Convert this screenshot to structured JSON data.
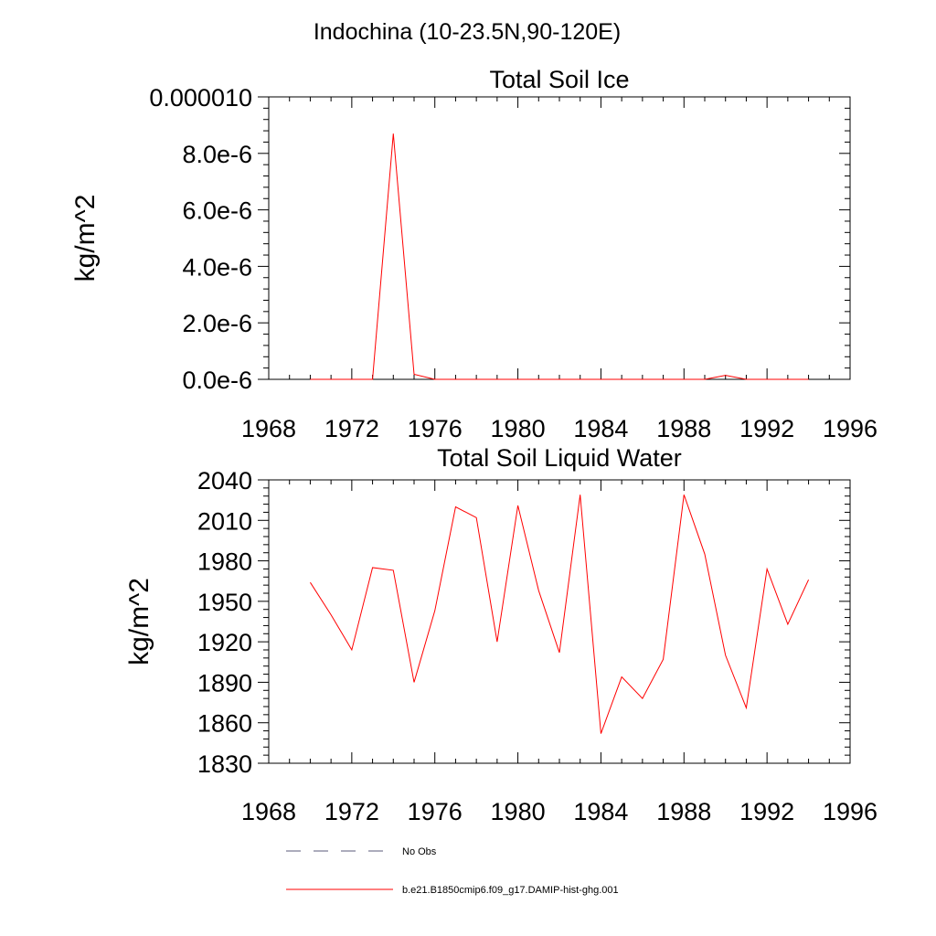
{
  "main_title": "Indochina (10-23.5N,90-120E)",
  "chart_data": [
    {
      "type": "line",
      "title": "Total Soil Ice",
      "xlabel": "",
      "ylabel": "kg/m^2",
      "xlim": [
        1968,
        1996
      ],
      "ylim": [
        0,
        1e-05
      ],
      "x_ticks": [
        1968,
        1972,
        1976,
        1980,
        1984,
        1988,
        1992,
        1996
      ],
      "x_tick_labels": [
        "1968",
        "1972",
        "1976",
        "1980",
        "1984",
        "1988",
        "1992",
        "1996"
      ],
      "y_ticks": [
        0,
        2e-06,
        4e-06,
        6e-06,
        8e-06,
        1e-05
      ],
      "y_tick_labels": [
        "0.0e-6",
        "2.0e-6",
        "4.0e-6",
        "6.0e-6",
        "8.0e-6",
        "0.000010"
      ],
      "series": [
        {
          "color": "#ff0000",
          "x": [
            1970,
            1971,
            1972,
            1973,
            1974,
            1975,
            1976,
            1977,
            1978,
            1979,
            1980,
            1981,
            1982,
            1983,
            1984,
            1985,
            1986,
            1987,
            1988,
            1989,
            1990,
            1991,
            1992,
            1993,
            1994
          ],
          "values": [
            0,
            0,
            0,
            0,
            8.7e-06,
            1.8e-07,
            0,
            0,
            0,
            0,
            0,
            0,
            0,
            0,
            0,
            0,
            0,
            0,
            0,
            0,
            1.4e-07,
            0,
            0,
            0,
            0
          ]
        }
      ]
    },
    {
      "type": "line",
      "title": "Total Soil Liquid Water",
      "xlabel": "",
      "ylabel": "kg/m^2",
      "xlim": [
        1968,
        1996
      ],
      "ylim": [
        1830,
        2040
      ],
      "x_ticks": [
        1968,
        1972,
        1976,
        1980,
        1984,
        1988,
        1992,
        1996
      ],
      "x_tick_labels": [
        "1968",
        "1972",
        "1976",
        "1980",
        "1984",
        "1988",
        "1992",
        "1996"
      ],
      "y_ticks": [
        1830,
        1860,
        1890,
        1920,
        1950,
        1980,
        2010,
        2040
      ],
      "y_tick_labels": [
        "1830",
        "1860",
        "1890",
        "1920",
        "1950",
        "1980",
        "2010",
        "2040"
      ],
      "series": [
        {
          "color": "#ff0000",
          "x": [
            1970,
            1971,
            1972,
            1973,
            1974,
            1975,
            1976,
            1977,
            1978,
            1979,
            1980,
            1981,
            1982,
            1983,
            1984,
            1985,
            1986,
            1987,
            1988,
            1989,
            1990,
            1991,
            1992,
            1993,
            1994
          ],
          "values": [
            1964,
            1940,
            1914,
            1975,
            1973,
            1890,
            1943,
            2020,
            2012,
            1920,
            2021,
            1958,
            1912,
            2029,
            1852,
            1894,
            1878,
            1907,
            2029,
            1985,
            1910,
            1871,
            1974,
            1933,
            1966
          ]
        }
      ]
    }
  ],
  "legend": {
    "placement": "bottom",
    "items": [
      {
        "label": "No Obs",
        "style": "dashed",
        "color": "#5a5a7a"
      },
      {
        "label": "b.e21.B1850cmip6.f09_g17.DAMIP-hist-ghg.001",
        "style": "solid",
        "color": "#ff0000"
      }
    ]
  }
}
